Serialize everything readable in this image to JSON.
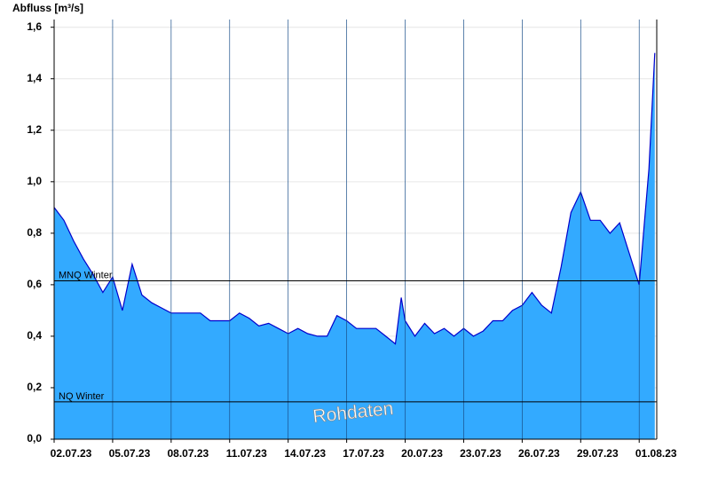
{
  "chart_data": {
    "type": "area",
    "y_label": "Abfluss [m³/s]",
    "annotation": "Rohdaten",
    "x": [
      0,
      0.5,
      1,
      1.5,
      2,
      2.5,
      3,
      3.5,
      4,
      4.5,
      5,
      5.5,
      6,
      6.5,
      7,
      7.5,
      8,
      8.5,
      9,
      9.5,
      10,
      10.5,
      11,
      11.5,
      12,
      12.5,
      13,
      13.5,
      14,
      14.5,
      15,
      15.5,
      16,
      16.5,
      17,
      17.5,
      17.8,
      18,
      18.5,
      19,
      19.5,
      20,
      20.5,
      21,
      21.5,
      22,
      22.5,
      23,
      23.5,
      24,
      24.5,
      25,
      25.5,
      26,
      26.5,
      27,
      27.5,
      28,
      28.5,
      29,
      29.5,
      30,
      30.5,
      30.8
    ],
    "values": [
      0.9,
      0.85,
      0.77,
      0.7,
      0.64,
      0.57,
      0.63,
      0.5,
      0.68,
      0.56,
      0.53,
      0.51,
      0.49,
      0.49,
      0.49,
      0.49,
      0.46,
      0.46,
      0.46,
      0.49,
      0.47,
      0.44,
      0.45,
      0.43,
      0.41,
      0.43,
      0.41,
      0.4,
      0.4,
      0.48,
      0.46,
      0.43,
      0.43,
      0.43,
      0.4,
      0.37,
      0.55,
      0.46,
      0.4,
      0.45,
      0.41,
      0.43,
      0.4,
      0.43,
      0.4,
      0.42,
      0.46,
      0.46,
      0.5,
      0.52,
      0.57,
      0.52,
      0.49,
      0.67,
      0.88,
      0.96,
      0.85,
      0.85,
      0.8,
      0.84,
      0.72,
      0.6,
      1.05,
      1.5
    ],
    "color": "#33aaff",
    "line_color": "#0000cc",
    "xlim": [
      0,
      30.9
    ],
    "xticks": [
      {
        "value": 0,
        "label": "02.07.23"
      },
      {
        "value": 3,
        "label": "05.07.23"
      },
      {
        "value": 6,
        "label": "08.07.23"
      },
      {
        "value": 9,
        "label": "11.07.23"
      },
      {
        "value": 12,
        "label": "14.07.23"
      },
      {
        "value": 15,
        "label": "17.07.23"
      },
      {
        "value": 18,
        "label": "20.07.23"
      },
      {
        "value": 21,
        "label": "23.07.23"
      },
      {
        "value": 24,
        "label": "26.07.23"
      },
      {
        "value": 27,
        "label": "29.07.23"
      },
      {
        "value": 30,
        "label": "01.08.23"
      }
    ],
    "ylim": [
      0,
      1.63
    ],
    "yticks": [
      {
        "value": 0,
        "label": "0,0"
      },
      {
        "value": 0.2,
        "label": "0,2"
      },
      {
        "value": 0.4,
        "label": "0,4"
      },
      {
        "value": 0.6,
        "label": "0,6"
      },
      {
        "value": 0.8,
        "label": "0,8"
      },
      {
        "value": 1.0,
        "label": "1,0"
      },
      {
        "value": 1.2,
        "label": "1,2"
      },
      {
        "value": 1.4,
        "label": "1,4"
      },
      {
        "value": 1.6,
        "label": "1,6"
      }
    ],
    "grid": true,
    "reference_lines": [
      {
        "label": "MNQ Winter",
        "value": 0.615
      },
      {
        "label": "NQ Winter",
        "value": 0.145
      }
    ]
  }
}
